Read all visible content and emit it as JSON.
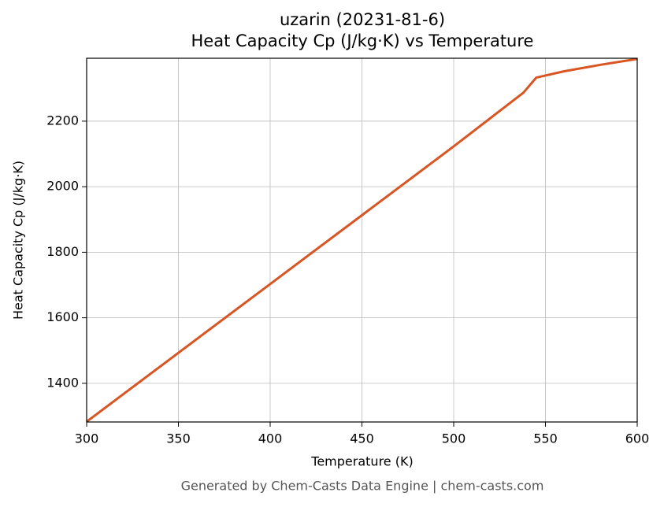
{
  "chart_data": {
    "type": "line",
    "title": "uzarin (20231-81-6)",
    "subtitle": "Heat Capacity Cp (J/kg·K) vs Temperature",
    "x_label": "Temperature (K)",
    "y_label": "Heat Capacity Cp (J/kg·K)",
    "footer": "Generated by Chem-Casts Data Engine | chem-casts.com",
    "x": [
      300,
      350,
      400,
      450,
      500,
      538,
      545,
      560,
      580,
      600
    ],
    "series": [
      {
        "name": "Cp",
        "color": "#d95522",
        "values": [
          1283,
          1493,
          1703,
          1913,
          2123,
          2287,
          2333,
          2352,
          2372,
          2390
        ]
      }
    ],
    "xlim": [
      300,
      600
    ],
    "ylim": [
      1282,
      2392
    ],
    "xticks": [
      300,
      350,
      400,
      450,
      500,
      550,
      600
    ],
    "yticks": [
      1400,
      1600,
      1800,
      2000,
      2200
    ],
    "grid": true
  }
}
